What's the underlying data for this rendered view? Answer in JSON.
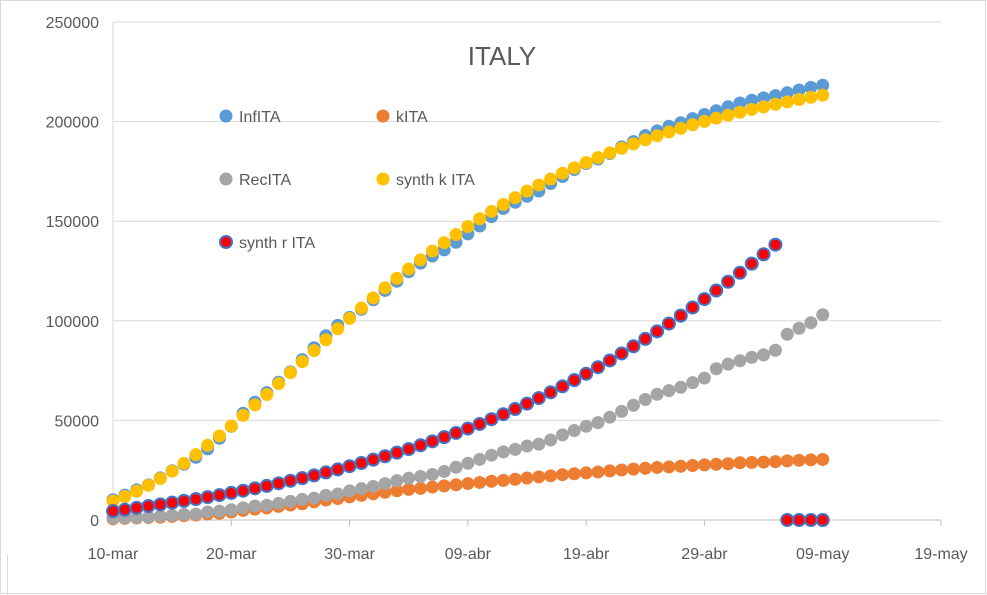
{
  "chart_data": {
    "type": "scatter",
    "title": "ITALY",
    "xlabel": "",
    "ylabel": "",
    "x_ticks": [
      "10-mar",
      "20-mar",
      "30-mar",
      "09-abr",
      "19-abr",
      "29-abr",
      "09-may",
      "19-may"
    ],
    "xlim_days": [
      0,
      70
    ],
    "ylim": [
      0,
      250000
    ],
    "y_ticks": [
      "0",
      "50000",
      "100000",
      "150000",
      "200000",
      "250000"
    ],
    "grid": "horizontal",
    "legend_placement": "inside-top-left",
    "series": [
      {
        "name": "InfITA",
        "color": "#5b9bd5",
        "x": [
          0,
          1,
          2,
          3,
          4,
          5,
          6,
          7,
          8,
          9,
          10,
          11,
          12,
          13,
          14,
          15,
          16,
          17,
          18,
          19,
          20,
          21,
          22,
          23,
          24,
          25,
          26,
          27,
          28,
          29,
          30,
          31,
          32,
          33,
          34,
          35,
          36,
          37,
          38,
          39,
          40,
          41,
          42,
          43,
          44,
          45,
          46,
          47,
          48,
          49,
          50,
          51,
          52,
          53,
          54,
          55,
          56,
          57,
          58,
          59,
          60
        ],
        "y": [
          10149,
          12462,
          15113,
          17660,
          21157,
          24747,
          27980,
          31506,
          35713,
          41035,
          47021,
          53578,
          59138,
          63927,
          69176,
          74386,
          80539,
          86498,
          92472,
          97689,
          101739,
          105792,
          110574,
          115242,
          119827,
          124632,
          128948,
          132547,
          135586,
          139422,
          143626,
          147577,
          152271,
          156363,
          159516,
          162488,
          165155,
          168941,
          172434,
          175925,
          178972,
          181228,
          183957,
          187327,
          189973,
          192994,
          195351,
          197675,
          199414,
          201505,
          203591,
          205463,
          207428,
          209328,
          210717,
          211938,
          213013,
          214457,
          215858,
          217185,
          218268
        ]
      },
      {
        "name": "kITA",
        "color": "#ed7d31",
        "x": [
          0,
          1,
          2,
          3,
          4,
          5,
          6,
          7,
          8,
          9,
          10,
          11,
          12,
          13,
          14,
          15,
          16,
          17,
          18,
          19,
          20,
          21,
          22,
          23,
          24,
          25,
          26,
          27,
          28,
          29,
          30,
          31,
          32,
          33,
          34,
          35,
          36,
          37,
          38,
          39,
          40,
          41,
          42,
          43,
          44,
          45,
          46,
          47,
          48,
          49,
          50,
          51,
          52,
          53,
          54,
          55,
          56,
          57,
          58,
          59,
          60
        ],
        "y": [
          631,
          827,
          1016,
          1266,
          1441,
          1809,
          2158,
          2503,
          2978,
          3405,
          4032,
          4825,
          5476,
          6077,
          6820,
          7503,
          8165,
          9134,
          10023,
          10779,
          11591,
          12428,
          13155,
          13915,
          14681,
          15362,
          15887,
          16523,
          17127,
          17669,
          18279,
          18849,
          19468,
          19899,
          20465,
          21067,
          21645,
          22170,
          22745,
          23227,
          23660,
          24114,
          24648,
          25085,
          25549,
          25969,
          26384,
          26644,
          26977,
          27359,
          27682,
          27967,
          28236,
          28710,
          28884,
          29079,
          29315,
          29684,
          29958,
          30201,
          30395
        ]
      },
      {
        "name": "RecITA",
        "color": "#a5a5a5",
        "x": [
          0,
          1,
          2,
          3,
          4,
          5,
          6,
          7,
          8,
          9,
          10,
          11,
          12,
          13,
          14,
          15,
          16,
          17,
          18,
          19,
          20,
          21,
          22,
          23,
          24,
          25,
          26,
          27,
          28,
          29,
          30,
          31,
          32,
          33,
          34,
          35,
          36,
          37,
          38,
          39,
          40,
          41,
          42,
          43,
          44,
          45,
          46,
          47,
          48,
          49,
          50,
          51,
          52,
          53,
          54,
          55,
          56,
          57,
          58,
          59,
          60
        ],
        "y": [
          1004,
          1045,
          1258,
          1439,
          1966,
          2335,
          2749,
          2941,
          4025,
          4440,
          5129,
          6072,
          7024,
          7432,
          8326,
          9362,
          10361,
          10950,
          12384,
          13030,
          14620,
          15729,
          16847,
          18278,
          19758,
          20996,
          21815,
          22837,
          24392,
          26491,
          28470,
          30455,
          32534,
          34211,
          35435,
          37130,
          38092,
          40164,
          42727,
          44927,
          47055,
          48877,
          51600,
          54543,
          57576,
          60498,
          63120,
          64928,
          66624,
          68941,
          71252,
          75945,
          78249,
          79914,
          81654,
          82879,
          85231,
          93245,
          96276,
          99023,
          103031
        ]
      },
      {
        "name": "synth k ITA",
        "color": "#ffc000",
        "x": [
          0,
          1,
          2,
          3,
          4,
          5,
          6,
          7,
          8,
          9,
          10,
          11,
          12,
          13,
          14,
          15,
          16,
          17,
          18,
          19,
          20,
          21,
          22,
          23,
          24,
          25,
          26,
          27,
          28,
          29,
          30,
          31,
          32,
          33,
          34,
          35,
          36,
          37,
          38,
          39,
          40,
          41,
          42,
          43,
          44,
          45,
          46,
          47,
          48,
          49,
          50,
          51,
          52,
          53,
          54,
          55,
          56,
          57,
          58,
          59,
          60
        ],
        "y": [
          9500,
          11800,
          14500,
          17400,
          20800,
          24500,
          28400,
          32800,
          37500,
          42200,
          47200,
          52500,
          57800,
          63000,
          68500,
          74000,
          79500,
          85000,
          90500,
          96000,
          101200,
          106400,
          111500,
          116500,
          121300,
          126000,
          130600,
          135000,
          139200,
          143300,
          147300,
          151200,
          154900,
          158400,
          161800,
          165100,
          168200,
          171200,
          174100,
          176800,
          179400,
          181900,
          184300,
          186600,
          188800,
          190900,
          192900,
          194800,
          196600,
          198400,
          200100,
          201700,
          203200,
          204700,
          206100,
          207400,
          208700,
          209900,
          211100,
          212200,
          213300
        ]
      },
      {
        "name": "synth r ITA",
        "color": "#ff0000",
        "stroke": "#4472c4",
        "x": [
          0,
          1,
          2,
          3,
          4,
          5,
          6,
          7,
          8,
          9,
          10,
          11,
          12,
          13,
          14,
          15,
          16,
          17,
          18,
          19,
          20,
          21,
          22,
          23,
          24,
          25,
          26,
          27,
          28,
          29,
          30,
          31,
          32,
          33,
          34,
          35,
          36,
          37,
          38,
          39,
          40,
          41,
          42,
          43,
          44,
          45,
          46,
          47,
          48,
          49,
          50,
          51,
          52,
          53,
          54,
          55,
          56,
          57,
          58,
          59,
          60
        ],
        "y": [
          4500,
          5200,
          6100,
          7000,
          7800,
          8700,
          9600,
          10500,
          11500,
          12500,
          13600,
          14700,
          15900,
          17100,
          18400,
          19700,
          21000,
          22400,
          23900,
          25400,
          27000,
          28600,
          30300,
          32000,
          33800,
          35600,
          37500,
          39500,
          41600,
          43700,
          45900,
          48200,
          50600,
          53100,
          55700,
          58400,
          61200,
          64100,
          67100,
          70200,
          73400,
          76700,
          80100,
          83600,
          87200,
          90900,
          94700,
          98600,
          102600,
          106700,
          110900,
          115200,
          119600,
          124100,
          128700,
          133400,
          138200,
          0,
          0,
          0,
          0
        ]
      }
    ]
  }
}
